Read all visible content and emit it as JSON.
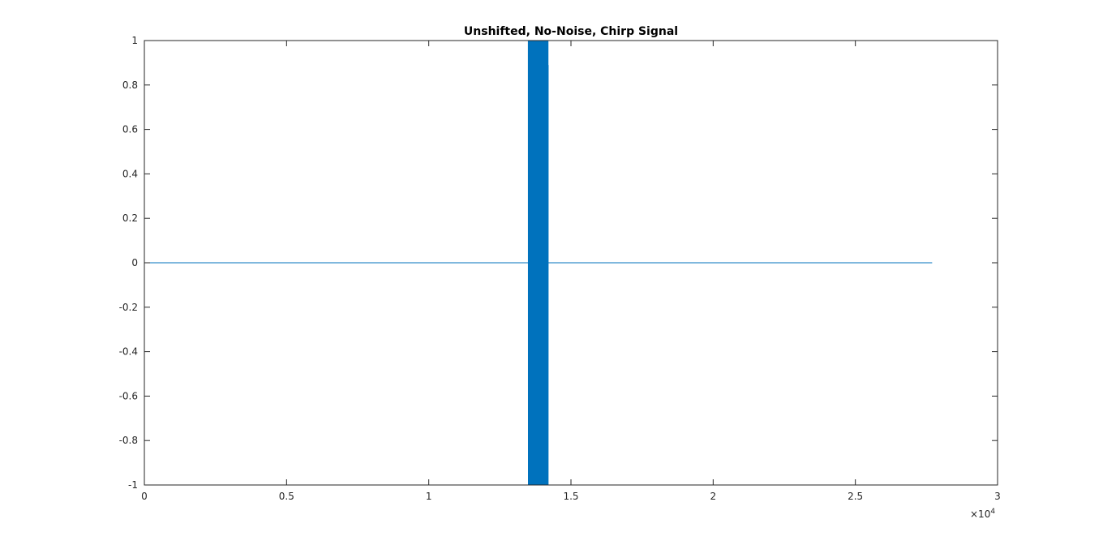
{
  "chart_data": {
    "type": "line",
    "title": "Unshifted, No-Noise, Chirp Signal",
    "xlabel": "",
    "ylabel": "",
    "xlim": [
      0,
      30000
    ],
    "ylim": [
      -1,
      1
    ],
    "x_ticks": [
      0,
      5000,
      10000,
      15000,
      20000,
      25000,
      30000
    ],
    "x_tick_labels": [
      "0",
      "0.5",
      "1",
      "1.5",
      "2",
      "2.5",
      "3"
    ],
    "x_exponent_label": "×10",
    "x_exponent_power": "4",
    "y_ticks": [
      -1,
      -0.8,
      -0.6,
      -0.4,
      -0.2,
      0,
      0.2,
      0.4,
      0.6,
      0.8,
      1
    ],
    "y_tick_labels": [
      "-1",
      "-0.8",
      "-0.6",
      "-0.4",
      "-0.2",
      "0",
      "0.2",
      "0.4",
      "0.6",
      "0.8",
      "1"
    ],
    "grid": false,
    "series": [
      {
        "color": "#0072bd",
        "baseline_segments": [
          {
            "x": [
              0,
              13500
            ],
            "y": [
              0,
              0
            ]
          },
          {
            "x": [
              14200,
              27700
            ],
            "y": [
              0,
              0
            ]
          }
        ],
        "chirp": {
          "x_start": 13500,
          "x_end": 14200,
          "amplitude": 1,
          "end_peak": 0.89
        }
      }
    ]
  }
}
